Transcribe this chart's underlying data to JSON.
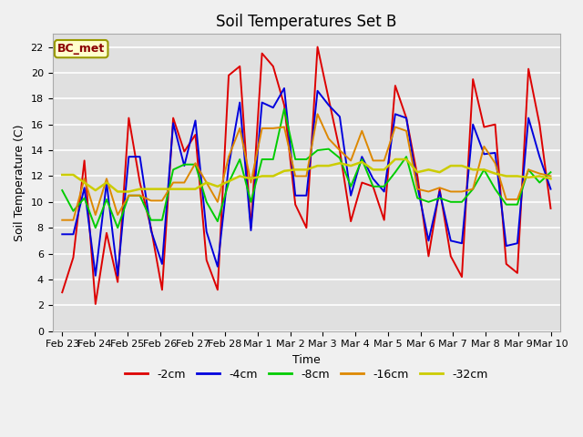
{
  "title": "Soil Temperatures Set B",
  "xlabel": "Time",
  "ylabel": "Soil Temperature (C)",
  "annotation": "BC_met",
  "ylim": [
    0,
    23
  ],
  "yticks": [
    0,
    2,
    4,
    6,
    8,
    10,
    12,
    14,
    16,
    18,
    20,
    22
  ],
  "x_labels": [
    "Feb 23",
    "Feb 24",
    "Feb 25",
    "Feb 26",
    "Feb 27",
    "Feb 28",
    "Mar 1",
    "Mar 2",
    "Mar 3",
    "Mar 4",
    "Mar 5",
    "Mar 6",
    "Mar 7",
    "Mar 8",
    "Mar 9",
    "Mar 10"
  ],
  "series": {
    "-2cm": {
      "color": "#dd0000",
      "lw": 1.4,
      "values": [
        3.0,
        5.7,
        13.2,
        2.1,
        7.6,
        3.8,
        16.5,
        11.5,
        8.0,
        3.2,
        16.5,
        13.9,
        15.2,
        5.5,
        3.2,
        19.8,
        20.5,
        8.0,
        21.5,
        20.5,
        17.5,
        9.8,
        8.0,
        22.0,
        18.0,
        14.0,
        8.5,
        11.5,
        11.2,
        8.6,
        19.0,
        16.5,
        12.0,
        5.8,
        11.0,
        5.8,
        4.2,
        19.5,
        15.8,
        16.0,
        5.2,
        4.5,
        20.3,
        16.0,
        9.5
      ]
    },
    "-4cm": {
      "color": "#0000dd",
      "lw": 1.4,
      "values": [
        7.5,
        7.5,
        11.1,
        4.3,
        11.5,
        4.3,
        13.5,
        13.5,
        7.8,
        5.2,
        16.1,
        12.8,
        16.3,
        7.7,
        5.0,
        12.8,
        17.7,
        7.8,
        17.7,
        17.3,
        18.8,
        10.5,
        10.5,
        18.6,
        17.5,
        16.6,
        10.5,
        13.5,
        11.8,
        10.8,
        16.8,
        16.5,
        11.2,
        7.0,
        10.8,
        7.0,
        6.8,
        16.0,
        13.7,
        13.8,
        6.6,
        6.8,
        16.5,
        13.5,
        11.0
      ]
    },
    "-8cm": {
      "color": "#00cc00",
      "lw": 1.4,
      "values": [
        10.9,
        9.3,
        10.3,
        8.0,
        10.2,
        8.0,
        10.5,
        10.5,
        8.6,
        8.6,
        12.5,
        12.9,
        12.9,
        10.0,
        8.5,
        11.5,
        13.3,
        10.0,
        13.3,
        13.3,
        17.2,
        13.3,
        13.3,
        14.0,
        14.1,
        13.4,
        11.2,
        13.3,
        11.2,
        11.2,
        12.3,
        13.5,
        10.3,
        10.0,
        10.3,
        10.0,
        10.0,
        11.0,
        12.5,
        11.0,
        9.8,
        9.8,
        12.5,
        11.5,
        12.3
      ]
    },
    "-16cm": {
      "color": "#dd8800",
      "lw": 1.4,
      "values": [
        8.6,
        8.6,
        11.8,
        9.0,
        11.8,
        9.0,
        10.5,
        10.5,
        10.1,
        10.1,
        11.5,
        11.5,
        13.0,
        11.5,
        10.0,
        13.5,
        15.7,
        11.5,
        15.7,
        15.7,
        15.8,
        12.0,
        12.0,
        16.8,
        14.9,
        14.0,
        13.2,
        15.5,
        13.2,
        13.2,
        15.8,
        15.5,
        11.0,
        10.8,
        11.1,
        10.8,
        10.8,
        11.0,
        14.3,
        13.0,
        10.2,
        10.2,
        12.5,
        12.2,
        12.0
      ]
    },
    "-32cm": {
      "color": "#cccc00",
      "lw": 1.8,
      "values": [
        12.1,
        12.1,
        11.5,
        10.9,
        11.5,
        10.8,
        10.8,
        11.0,
        11.0,
        11.0,
        11.0,
        11.0,
        11.0,
        11.5,
        11.2,
        11.6,
        12.0,
        11.8,
        12.0,
        12.0,
        12.4,
        12.5,
        12.5,
        12.8,
        12.8,
        13.0,
        12.8,
        13.1,
        12.5,
        12.5,
        13.3,
        13.3,
        12.3,
        12.5,
        12.3,
        12.8,
        12.8,
        12.5,
        12.5,
        12.2,
        12.0,
        12.0,
        11.9,
        12.0,
        11.8
      ]
    }
  },
  "bg_color": "#f0f0f0",
  "plot_bg_color": "#e0e0e0",
  "grid_color": "#ffffff",
  "title_fontsize": 12,
  "label_fontsize": 9,
  "tick_fontsize": 8
}
